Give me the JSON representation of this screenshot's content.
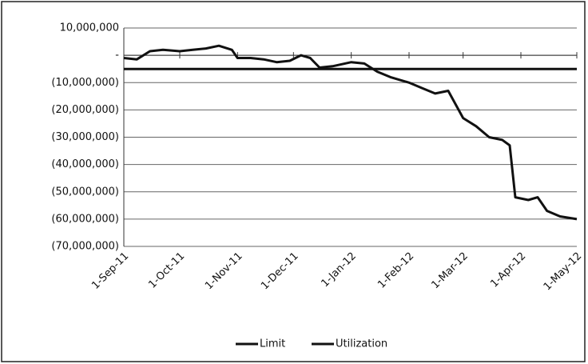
{
  "chart_data": {
    "type": "line",
    "xticks": [
      {
        "value": "2011-09-01",
        "label": "1-Sep-11"
      },
      {
        "value": "2011-10-01",
        "label": "1-Oct-11"
      },
      {
        "value": "2011-11-01",
        "label": "1-Nov-11"
      },
      {
        "value": "2011-12-01",
        "label": "1-Dec-11"
      },
      {
        "value": "2012-01-01",
        "label": "1-Jan-12"
      },
      {
        "value": "2012-02-01",
        "label": "1-Feb-12"
      },
      {
        "value": "2012-03-01",
        "label": "1-Mar-12"
      },
      {
        "value": "2012-04-01",
        "label": "1-Apr-12"
      },
      {
        "value": "2012-05-01",
        "label": "1-May-12"
      }
    ],
    "xlim": [
      "2011-09-01",
      "2012-05-01"
    ],
    "ylim": [
      -70000000,
      10000000
    ],
    "yticks": [
      {
        "value": 10000000,
        "label": "10,000,000"
      },
      {
        "value": 0,
        "label": "-"
      },
      {
        "value": -10000000,
        "label": "(10,000,000)"
      },
      {
        "value": -20000000,
        "label": "(20,000,000)"
      },
      {
        "value": -30000000,
        "label": "(30,000,000)"
      },
      {
        "value": -40000000,
        "label": "(40,000,000)"
      },
      {
        "value": -50000000,
        "label": "(50,000,000)"
      },
      {
        "value": -60000000,
        "label": "(60,000,000)"
      },
      {
        "value": -70000000,
        "label": "(70,000,000)"
      }
    ],
    "grid": true,
    "legend": "bottom",
    "series": [
      {
        "name": "Limit",
        "color": "#111111",
        "x": [
          "2011-09-01",
          "2012-05-01"
        ],
        "values": [
          -5000000,
          -5000000
        ]
      },
      {
        "name": "Utilization",
        "color": "#111111",
        "x": [
          "2011-09-01",
          "2011-09-08",
          "2011-09-15",
          "2011-09-22",
          "2011-10-01",
          "2011-10-08",
          "2011-10-15",
          "2011-10-22",
          "2011-10-29",
          "2011-11-01",
          "2011-11-08",
          "2011-11-15",
          "2011-11-22",
          "2011-11-29",
          "2011-12-05",
          "2011-12-10",
          "2011-12-15",
          "2011-12-22",
          "2012-01-01",
          "2012-01-08",
          "2012-01-15",
          "2012-01-22",
          "2012-02-01",
          "2012-02-08",
          "2012-02-15",
          "2012-02-22",
          "2012-03-01",
          "2012-03-08",
          "2012-03-15",
          "2012-03-22",
          "2012-03-26",
          "2012-03-29",
          "2012-04-05",
          "2012-04-10",
          "2012-04-15",
          "2012-04-22",
          "2012-05-01"
        ],
        "values": [
          -1000000,
          -1500000,
          1500000,
          2000000,
          1500000,
          2000000,
          2500000,
          3500000,
          2000000,
          -1000000,
          -1000000,
          -1500000,
          -2500000,
          -2000000,
          0,
          -1000000,
          -4500000,
          -4000000,
          -2500000,
          -3000000,
          -6000000,
          -8000000,
          -10000000,
          -12000000,
          -14000000,
          -13000000,
          -23000000,
          -26000000,
          -30000000,
          -31000000,
          -33000000,
          -52000000,
          -53000000,
          -52000000,
          -57000000,
          -59000000,
          -60000000
        ]
      }
    ]
  }
}
